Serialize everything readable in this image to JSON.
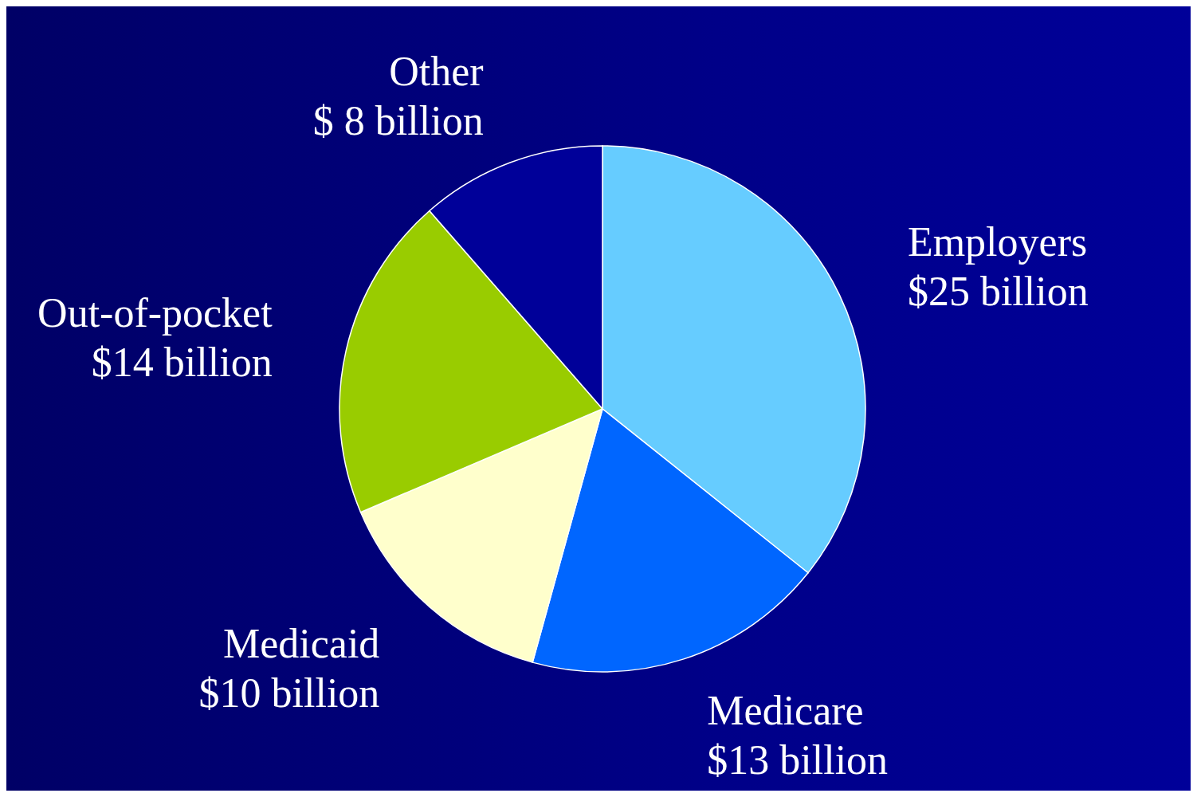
{
  "chart_data": {
    "type": "pie",
    "categories": [
      "Employers",
      "Medicare",
      "Medicaid",
      "Out-of-pocket",
      "Other"
    ],
    "values": [
      25,
      13,
      10,
      14,
      8
    ],
    "value_labels": [
      "$25 billion",
      "$13 billion",
      "$10 billion",
      "$14 billion",
      "$ 8 billion"
    ],
    "colors": [
      "#66ccff",
      "#0066ff",
      "#ffffcc",
      "#99cc00",
      "#000099"
    ],
    "legend": false
  }
}
